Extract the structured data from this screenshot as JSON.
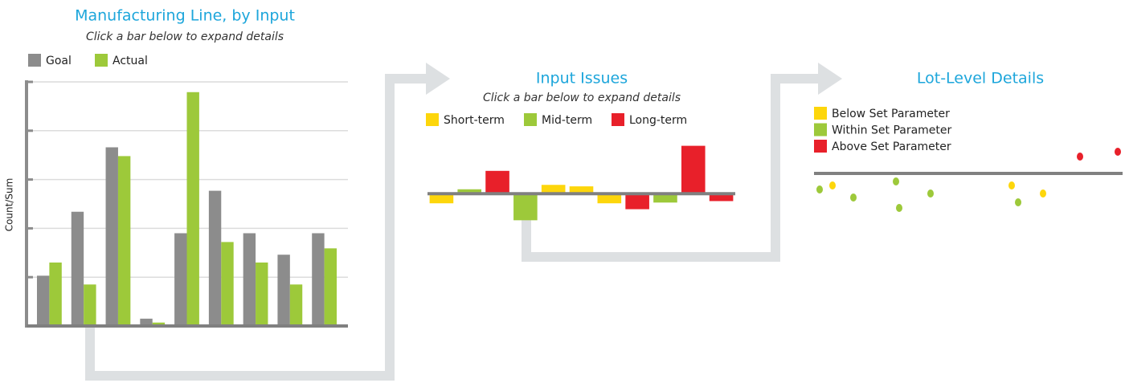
{
  "chart_data": [
    {
      "type": "bar",
      "title": "Manufacturing Line, by Input",
      "subtitle": "Click a bar below to expand details",
      "y_label": "Count/Sum",
      "categories": [
        null,
        null,
        null,
        null,
        null,
        null,
        null,
        null,
        null
      ],
      "series": [
        {
          "name": "Goal",
          "color": "#8c8c8c",
          "values": [
            1.03,
            2.34,
            3.66,
            0.15,
            1.9,
            2.77,
            1.9,
            1.46,
            1.9
          ]
        },
        {
          "name": "Actual",
          "color": "#9dc93a",
          "values": [
            1.3,
            0.85,
            3.48,
            0.07,
            4.79,
            1.72,
            1.3,
            0.85,
            1.59
          ]
        }
      ],
      "ylim": [
        0,
        5
      ],
      "yticks": [
        0,
        1,
        2,
        3,
        4,
        5
      ],
      "grid": true
    },
    {
      "type": "bar",
      "title": "Input Issues",
      "subtitle": "Click a bar below to expand details",
      "categories": [
        null,
        null,
        null,
        null,
        null,
        null,
        null,
        null,
        null,
        null,
        null
      ],
      "series": [
        {
          "name": "Short-term",
          "color": "#fdd60b",
          "values": [
            -1.3,
            null,
            null,
            null,
            1.2,
            1.0,
            -1.3,
            null,
            null,
            null,
            null
          ]
        },
        {
          "name": "Mid-term",
          "color": "#9dc93a",
          "values": [
            null,
            0.6,
            null,
            -3.6,
            null,
            null,
            null,
            null,
            -1.2,
            null,
            null
          ]
        },
        {
          "name": "Long-term",
          "color": "#e8202a",
          "values": [
            null,
            null,
            3.1,
            null,
            null,
            null,
            null,
            -2.1,
            null,
            6.5,
            -1.0
          ]
        }
      ],
      "ylim": [
        -4,
        7
      ]
    },
    {
      "type": "scatter",
      "title": "Lot-Level Details",
      "series": [
        {
          "name": "Below Set Parameter",
          "color": "#fdd60b",
          "x": [
            21,
            244,
            283
          ],
          "values": [
            -1.5,
            -1.5,
            -2.5
          ]
        },
        {
          "name": "Within Set Parameter",
          "color": "#9dc93a",
          "x": [
            5,
            47,
            100,
            104,
            143,
            252
          ],
          "values": [
            -2.0,
            -3.0,
            -1.0,
            -4.3,
            -2.5,
            -3.6
          ]
        },
        {
          "name": "Above Set Parameter",
          "color": "#e8202a",
          "x": [
            329,
            376
          ],
          "values": [
            2.1,
            2.7
          ]
        }
      ],
      "xlim": [
        0,
        380
      ],
      "ylim": [
        -5,
        3
      ]
    }
  ]
}
